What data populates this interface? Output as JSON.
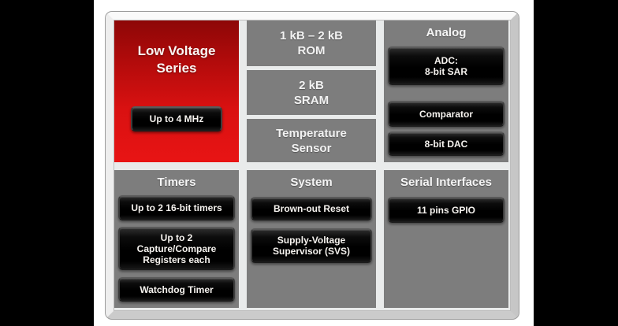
{
  "colors": {
    "red_top": "#8d0707",
    "red_bottom": "#e81414",
    "panel_gray": "#7d7d7d",
    "chip_black": "#000000",
    "frame_light": "#fafafa",
    "inner_bg": "#e9ebeb",
    "slide_bg": "#ffffff",
    "letterbox": "#000000"
  },
  "low_voltage": {
    "title_line1": "Low Voltage",
    "title_line2": "Series",
    "chip": "Up to 4 MHz"
  },
  "memory": {
    "rom_line1": "1 kB – 2 kB",
    "rom_line2": "ROM",
    "sram_line1": "2 kB",
    "sram_line2": "SRAM",
    "temp_line1": "Temperature",
    "temp_line2": "Sensor"
  },
  "analog": {
    "title": "Analog",
    "adc_line1": "ADC:",
    "adc_line2": "8-bit SAR",
    "comparator": "Comparator",
    "dac": "8-bit DAC"
  },
  "timers": {
    "title": "Timers",
    "chip1": "Up to 2 16-bit timers",
    "chip2_line1": "Up to 2",
    "chip2_line2": "Capture/Compare",
    "chip2_line3": "Registers each",
    "chip3": "Watchdog Timer"
  },
  "system": {
    "title": "System",
    "chip1": "Brown-out Reset",
    "chip2_line1": "Supply-Voltage",
    "chip2_line2": "Supervisor (SVS)"
  },
  "serial": {
    "title": "Serial Interfaces",
    "chip1": "11 pins GPIO"
  }
}
